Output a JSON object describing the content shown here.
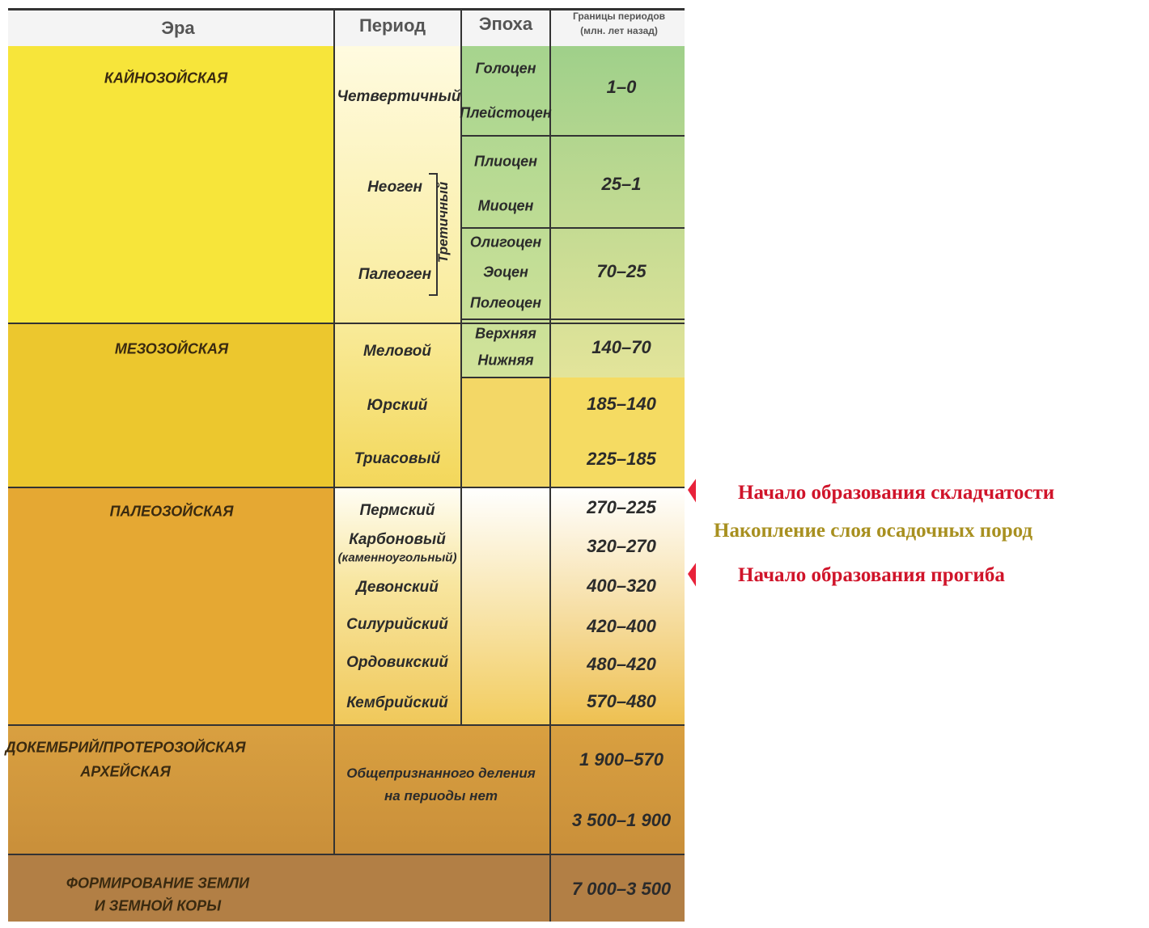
{
  "header": {
    "columns": [
      "Эра",
      "Период",
      "Эпоха",
      "Границы периодов",
      "(млн. лет назад)"
    ]
  },
  "eras": [
    {
      "name": "КАЙНОЗОЙСКАЯ",
      "group_label": "Третичный",
      "periods": [
        "Четвертичный",
        "Неоген",
        "Палеоген"
      ],
      "epochs": [
        "Голоцен",
        "Плейстоцен",
        "Плиоцен",
        "Миоцен",
        "Олигоцен",
        "Эоцен",
        "Полеоцен"
      ],
      "boundaries": [
        "1–0",
        "25–1",
        "70–25"
      ]
    },
    {
      "name": "МЕЗОЗОЙСКАЯ",
      "periods": [
        "Меловой",
        "Юрский",
        "Триасовый"
      ],
      "epochs": [
        "Верхняя",
        "Нижняя"
      ],
      "boundaries": [
        "140–70",
        "185–140",
        "225–185"
      ]
    },
    {
      "name": "ПАЛЕОЗОЙСКАЯ",
      "periods": [
        "Пермский",
        "Карбоновый",
        "(каменноугольный)",
        "Девонский",
        "Силурийский",
        "Ордовикский",
        "Кембрийский"
      ],
      "boundaries": [
        "270–225",
        "320–270",
        "400–320",
        "420–400",
        "480–420",
        "570–480"
      ]
    },
    {
      "name": "ДОКЕМБРИЙ/ПРОТЕРОЗОЙСКАЯ",
      "name2": "АРХЕЙСКАЯ",
      "periods": [
        "Общепризнанного деления",
        "на периоды нет"
      ],
      "boundaries": [
        "1 900–570",
        "3 500–1 900"
      ]
    },
    {
      "name": "ФОРМИРОВАНИЕ ЗЕМЛИ",
      "name2": "И ЗЕМНОЙ КОРЫ",
      "boundaries": [
        "7 000–3 500"
      ]
    }
  ],
  "annotations": [
    "Начало образования складчатости",
    "Накопление слоя осадочных пород",
    "Начало образования прогиба"
  ]
}
